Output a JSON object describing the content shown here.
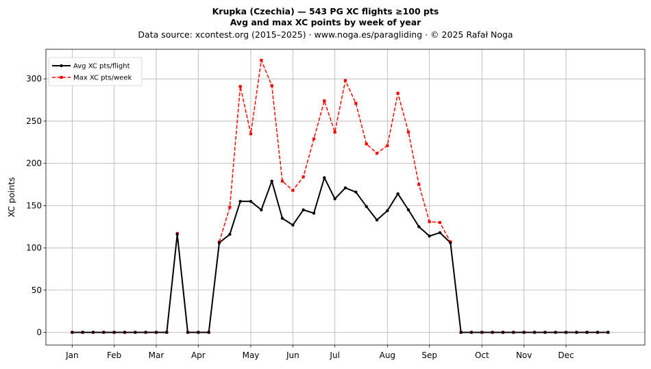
{
  "chart_data": {
    "type": "line",
    "title": "Krupka (Czechia)  —  543 PG XC flights ≥100 pts",
    "subtitle": "Avg and max XC points by week of year",
    "source": "Data source: xcontest.org (2015–2025)  ·  www.noga.es/paragliding  ·  © 2025 Rafał Noga",
    "xlabel": "",
    "ylabel": "XC points",
    "ylim": [
      -15,
      335
    ],
    "xlim": [
      -2.5,
      54.5
    ],
    "yticks": [
      0,
      50,
      100,
      150,
      200,
      250,
      300
    ],
    "grid": true,
    "legend_position": "top-left",
    "x_weeks": [
      0,
      1,
      2,
      3,
      4,
      5,
      6,
      7,
      8,
      9,
      10,
      11,
      12,
      13,
      14,
      15,
      16,
      17,
      18,
      19,
      20,
      21,
      22,
      23,
      24,
      25,
      26,
      27,
      28,
      29,
      30,
      31,
      32,
      33,
      34,
      35,
      36,
      37,
      38,
      39,
      40,
      41,
      42,
      43,
      44,
      45,
      46,
      47,
      48,
      49,
      50,
      51
    ],
    "month_ticks": [
      {
        "label": "Jan",
        "week": 0
      },
      {
        "label": "Feb",
        "week": 4
      },
      {
        "label": "Mar",
        "week": 8
      },
      {
        "label": "Apr",
        "week": 12
      },
      {
        "label": "May",
        "week": 17
      },
      {
        "label": "Jun",
        "week": 21
      },
      {
        "label": "Jul",
        "week": 25
      },
      {
        "label": "Aug",
        "week": 30
      },
      {
        "label": "Sep",
        "week": 34
      },
      {
        "label": "Oct",
        "week": 39
      },
      {
        "label": "Nov",
        "week": 43
      },
      {
        "label": "Dec",
        "week": 47
      }
    ],
    "series": [
      {
        "name": "Avg XC pts/flight",
        "color": "#000000",
        "style": "solid",
        "marker": "circle",
        "values": [
          0,
          0,
          0,
          0,
          0,
          0,
          0,
          0,
          0,
          0,
          116,
          0,
          0,
          0,
          106,
          116,
          155,
          155,
          145,
          179,
          135,
          127,
          145,
          141,
          183,
          158,
          171,
          166,
          149,
          133,
          144,
          164,
          145,
          125,
          114,
          118,
          106,
          0,
          0,
          0,
          0,
          0,
          0,
          0,
          0,
          0,
          0,
          0,
          0,
          0,
          0,
          0
        ]
      },
      {
        "name": "Max XC pts/week",
        "color": "#ff0000",
        "style": "dashed",
        "marker": "square",
        "values": [
          0,
          0,
          0,
          0,
          0,
          0,
          0,
          0,
          0,
          0,
          117,
          0,
          0,
          0,
          107,
          148,
          291,
          235,
          322,
          292,
          179,
          168,
          184,
          229,
          274,
          237,
          298,
          271,
          223,
          212,
          221,
          283,
          237,
          175,
          131,
          130,
          107,
          0,
          0,
          0,
          0,
          0,
          0,
          0,
          0,
          0,
          0,
          0,
          0,
          0,
          0,
          0
        ]
      }
    ]
  }
}
